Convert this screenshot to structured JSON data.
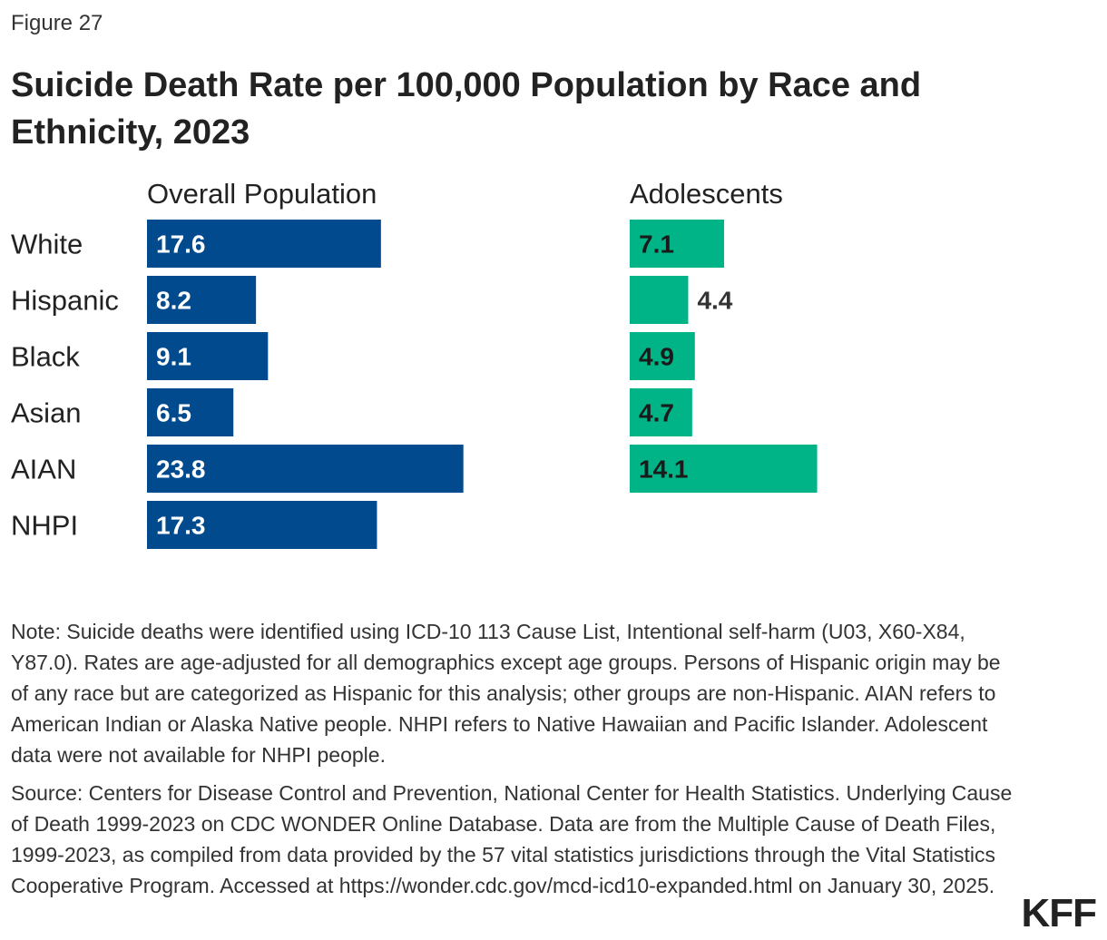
{
  "figure_label": "Figure 27",
  "title": "Suicide Death Rate per 100,000 Population by Race and Ethnicity, 2023",
  "note": "Note: Suicide deaths were identified using ICD-10 113 Cause List, Intentional self-harm (U03, X60-X84, Y87.0). Rates are age-adjusted for all demographics except age groups. Persons of Hispanic origin may be of any race but are categorized as Hispanic for this analysis; other groups are non-Hispanic. AIAN refers to American Indian or Alaska Native people. NHPI refers to Native Hawaiian and Pacific Islander. Adolescent data were not available for NHPI people.",
  "source": "Source: Centers for Disease Control and Prevention, National Center for Health Statistics. Underlying Cause of Death 1999-2023 on CDC WONDER Online Database. Data are from the Multiple Cause of Death Files, 1999-2023, as compiled from data provided by the 57 vital statistics jurisdictions through the Vital Statistics Cooperative Program. Accessed at https://wonder.cdc.gov/mcd-icd10-expanded.html on January 30, 2025.",
  "logo_text": "KFF",
  "chart_data": {
    "type": "bar",
    "orientation": "horizontal",
    "title": "Suicide Death Rate per 100,000 Population by Race and Ethnicity, 2023",
    "categories": [
      "White",
      "Hispanic",
      "Black",
      "Asian",
      "AIAN",
      "NHPI"
    ],
    "series": [
      {
        "name": "Overall Population",
        "color": "#004a8d",
        "values": [
          17.6,
          8.2,
          9.1,
          6.5,
          23.8,
          17.3
        ]
      },
      {
        "name": "Adolescents",
        "color": "#00b487",
        "values": [
          7.1,
          4.4,
          4.9,
          4.7,
          14.1,
          null
        ]
      }
    ],
    "data_labels": true,
    "grid": false
  }
}
